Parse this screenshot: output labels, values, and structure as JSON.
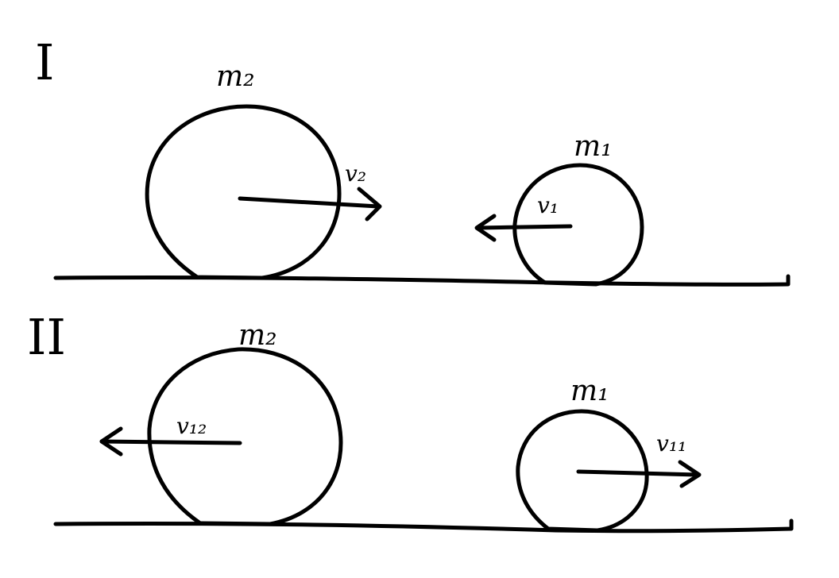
{
  "scenes": [
    {
      "label": "I",
      "big_ball": {
        "mass_label": "m₂",
        "velocity_label": "v₂",
        "direction": "right"
      },
      "small_ball": {
        "mass_label": "m₁",
        "velocity_label": "v₁",
        "direction": "left"
      }
    },
    {
      "label": "II",
      "big_ball": {
        "mass_label": "m₂",
        "velocity_label": "v₁₂",
        "direction": "left"
      },
      "small_ball": {
        "mass_label": "m₁",
        "velocity_label": "v₁₁",
        "direction": "right"
      }
    }
  ],
  "colors": {
    "ink": "#000000",
    "background": "#ffffff"
  }
}
